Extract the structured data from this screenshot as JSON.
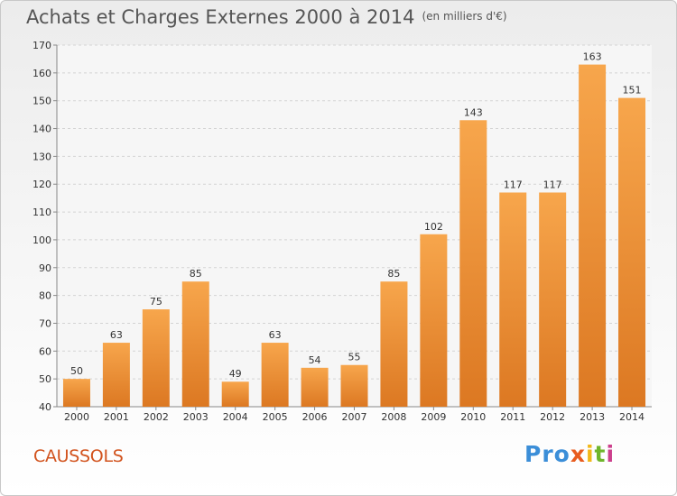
{
  "title": "Achats et Charges Externes 2000 à 2014",
  "unit": "(en milliers d'€)",
  "place": "CAUSSOLS",
  "logo": [
    "Pro",
    "x",
    "i",
    "t",
    "i"
  ],
  "colors": {
    "bar_light": "#f7a64c",
    "bar_dark": "#dc7822",
    "place": "#d2541f"
  },
  "chart_data": {
    "type": "bar",
    "categories": [
      "2000",
      "2001",
      "2002",
      "2003",
      "2004",
      "2005",
      "2006",
      "2007",
      "2008",
      "2009",
      "2010",
      "2011",
      "2012",
      "2013",
      "2014"
    ],
    "values": [
      50,
      63,
      75,
      85,
      49,
      63,
      54,
      55,
      85,
      102,
      143,
      117,
      117,
      163,
      151
    ],
    "yticks": [
      40,
      50,
      60,
      70,
      80,
      90,
      100,
      110,
      120,
      130,
      140,
      150,
      160,
      170
    ],
    "ylim": [
      40,
      170
    ],
    "grid": true,
    "xlabel": "",
    "ylabel": ""
  }
}
